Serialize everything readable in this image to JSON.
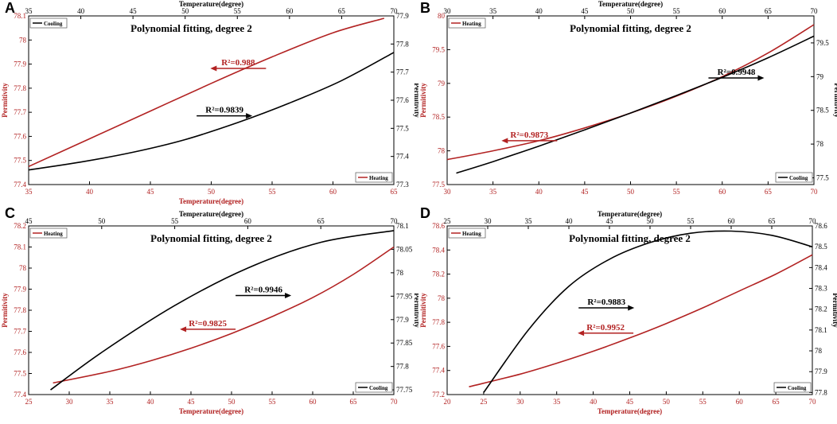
{
  "chart_data": [
    {
      "letter": "A",
      "type": "line",
      "title": "Polynomial fitting, degree 2",
      "bottom_axis": {
        "label": "Temperature(degree)",
        "color": "#b22222",
        "range": [
          35,
          65
        ],
        "ticks": [
          35,
          40,
          45,
          50,
          55,
          60,
          65
        ]
      },
      "top_axis": {
        "label": "Temperature(degree)",
        "color": "#000000",
        "range": [
          35,
          70
        ],
        "ticks": [
          35,
          40,
          45,
          50,
          55,
          60,
          65,
          70
        ]
      },
      "left_axis": {
        "label": "Permitivity",
        "color": "#b22222",
        "range": [
          77.4,
          78.1
        ],
        "ticks": [
          "77.4",
          "77.5",
          "77.6",
          "77.7",
          "77.8",
          "77.9",
          "78",
          "78.1"
        ]
      },
      "right_axis": {
        "label": "Permitivity",
        "color": "#000000",
        "range": [
          77.3,
          77.9
        ],
        "ticks": [
          "77.3",
          "77.4",
          "77.5",
          "77.6",
          "77.7",
          "77.8",
          "77.9"
        ]
      },
      "legends": [
        {
          "name": "Cooling",
          "color": "#000000",
          "position": "top-left"
        },
        {
          "name": "Heating",
          "color": "#b22222",
          "position": "bottom-right"
        }
      ],
      "series": [
        {
          "name": "Heating",
          "color": "#b22222",
          "x_axis": "bottom",
          "y_axis": "left",
          "x": [
            35,
            40,
            45,
            50,
            55,
            60,
            64.2
          ],
          "y": [
            77.475,
            77.59,
            77.705,
            77.82,
            77.93,
            78.03,
            78.09
          ]
        },
        {
          "name": "Cooling",
          "color": "#000000",
          "x_axis": "top",
          "y_axis": "right",
          "x": [
            35,
            40,
            45,
            50,
            55,
            60,
            65,
            70
          ],
          "y": [
            77.352,
            77.38,
            77.415,
            77.46,
            77.52,
            77.59,
            77.67,
            77.77
          ]
        }
      ],
      "annotations": [
        {
          "text": "R²=0.988",
          "color": "#b22222",
          "dir": "left",
          "x": 54.5,
          "y": 77.882,
          "axes": "left"
        },
        {
          "text": "R²=0.9839",
          "color": "#000000",
          "dir": "right",
          "x": 48.8,
          "y": 77.685,
          "axes": "left"
        }
      ]
    },
    {
      "letter": "B",
      "type": "line",
      "title": "Polynomial fitting, degree 2",
      "bottom_axis": {
        "label": "",
        "color": "#b22222",
        "range": [
          30,
          70
        ],
        "ticks": [
          30,
          35,
          40,
          45,
          50,
          55,
          60,
          65,
          70
        ]
      },
      "top_axis": {
        "label": "Temperature(degree)",
        "color": "#000000",
        "range": [
          30,
          70
        ],
        "ticks": [
          30,
          35,
          40,
          45,
          50,
          55,
          60,
          65,
          70
        ]
      },
      "left_axis": {
        "label": "Permitivity",
        "color": "#b22222",
        "range": [
          77.5,
          80
        ],
        "ticks": [
          "77.5",
          "78",
          "78.5",
          "79",
          "79.5",
          "80"
        ]
      },
      "right_axis": {
        "label": "Permitivity",
        "color": "#000000",
        "range": [
          77.4,
          79.9
        ],
        "ticks": [
          "77.5",
          "78",
          "78.5",
          "79",
          "79.5"
        ]
      },
      "legends": [
        {
          "name": "Heating",
          "color": "#b22222",
          "position": "top-left"
        },
        {
          "name": "Cooling",
          "color": "#000000",
          "position": "bottom-right"
        }
      ],
      "series": [
        {
          "name": "Heating",
          "color": "#b22222",
          "x_axis": "bottom",
          "y_axis": "left",
          "x": [
            30,
            35,
            40,
            45,
            50,
            55,
            60,
            65,
            70
          ],
          "y": [
            77.87,
            78.0,
            78.15,
            78.34,
            78.56,
            78.81,
            79.1,
            79.45,
            79.87
          ]
        },
        {
          "name": "Cooling",
          "color": "#000000",
          "x_axis": "top",
          "y_axis": "right",
          "x": [
            31,
            35,
            40,
            45,
            50,
            55,
            60,
            65,
            70
          ],
          "y": [
            77.57,
            77.74,
            77.97,
            78.21,
            78.46,
            78.72,
            78.99,
            79.28,
            79.6
          ]
        }
      ],
      "annotations": [
        {
          "text": "R²=0.9873",
          "color": "#b22222",
          "dir": "left",
          "x": 42,
          "y": 78.15,
          "axes": "left"
        },
        {
          "text": "R²=0.9948",
          "color": "#000000",
          "dir": "right",
          "x": 58.5,
          "y": 79.08,
          "axes": "left"
        }
      ]
    },
    {
      "letter": "C",
      "type": "line",
      "title": "Polynomial fitting, degree 2",
      "bottom_axis": {
        "label": "Temperature(degree)",
        "color": "#b22222",
        "range": [
          25,
          70
        ],
        "ticks": [
          25,
          30,
          35,
          40,
          45,
          50,
          55,
          60,
          65,
          70
        ]
      },
      "top_axis": {
        "label": "Temperature(degree)",
        "color": "#000000",
        "range": [
          45,
          70
        ],
        "ticks": [
          45,
          50,
          55,
          60,
          65,
          70
        ]
      },
      "left_axis": {
        "label": "Permitivity",
        "color": "#b22222",
        "range": [
          77.4,
          78.2
        ],
        "ticks": [
          "77.4",
          "77.5",
          "77.6",
          "77.7",
          "77.8",
          "77.9",
          "78",
          "78.1",
          "78.2"
        ]
      },
      "right_axis": {
        "label": "Permitivity",
        "color": "#000000",
        "range": [
          77.74,
          78.1
        ],
        "ticks": [
          "77.75",
          "77.8",
          "77.85",
          "77.9",
          "77.95",
          "78",
          "78.05",
          "78.1"
        ]
      },
      "legends": [
        {
          "name": "Heating",
          "color": "#b22222",
          "position": "top-left"
        },
        {
          "name": "Cooling",
          "color": "#000000",
          "position": "bottom-right"
        }
      ],
      "series": [
        {
          "name": "Heating",
          "color": "#b22222",
          "x_axis": "bottom",
          "y_axis": "left",
          "x": [
            28,
            35,
            40,
            45,
            50,
            55,
            60,
            65,
            70
          ],
          "y": [
            77.455,
            77.51,
            77.56,
            77.62,
            77.69,
            77.77,
            77.86,
            77.97,
            78.1
          ]
        },
        {
          "name": "Cooling",
          "color": "#000000",
          "x_axis": "top",
          "y_axis": "right",
          "x": [
            46.5,
            50,
            55,
            60,
            65,
            70
          ],
          "y": [
            77.75,
            77.83,
            77.93,
            78.01,
            78.065,
            78.09
          ]
        }
      ],
      "annotations": [
        {
          "text": "R²=0.9825",
          "color": "#b22222",
          "dir": "left",
          "x": 50.5,
          "y": 77.71,
          "axes": "left"
        },
        {
          "text": "R²=0.9946",
          "color": "#000000",
          "dir": "right",
          "x": 50.5,
          "y": 77.87,
          "axes": "left"
        }
      ]
    },
    {
      "letter": "D",
      "type": "line",
      "title": "Polynomial fitting, degree 2",
      "bottom_axis": {
        "label": "Temperature(degree)",
        "color": "#b22222",
        "range": [
          20,
          70
        ],
        "ticks": [
          20,
          25,
          30,
          35,
          40,
          45,
          50,
          55,
          60,
          65,
          70
        ]
      },
      "top_axis": {
        "label": "Temperature(degree)",
        "color": "#000000",
        "range": [
          25,
          70
        ],
        "ticks": [
          25,
          30,
          35,
          40,
          45,
          50,
          55,
          60,
          65,
          70
        ]
      },
      "left_axis": {
        "label": "Permitivity",
        "color": "#b22222",
        "range": [
          77.2,
          78.6
        ],
        "ticks": [
          "77.2",
          "77.4",
          "77.6",
          "77.8",
          "78",
          "78.2",
          "78.4",
          "78.6"
        ]
      },
      "right_axis": {
        "label": "Permitivity",
        "color": "#000000",
        "range": [
          77.79,
          78.6
        ],
        "ticks": [
          "77.8",
          "77.9",
          "78",
          "78.1",
          "78.2",
          "78.3",
          "78.4",
          "78.5",
          "78.6"
        ]
      },
      "legends": [
        {
          "name": "Heating",
          "color": "#b22222",
          "position": "top-left"
        },
        {
          "name": "Cooling",
          "color": "#000000",
          "position": "bottom-right"
        }
      ],
      "series": [
        {
          "name": "Heating",
          "color": "#b22222",
          "x_axis": "bottom",
          "y_axis": "left",
          "x": [
            23,
            30,
            35,
            40,
            45,
            50,
            55,
            60,
            65,
            70
          ],
          "y": [
            77.265,
            77.37,
            77.46,
            77.56,
            77.67,
            77.79,
            77.92,
            78.06,
            78.2,
            78.36
          ]
        },
        {
          "name": "Cooling",
          "color": "#000000",
          "x_axis": "top",
          "y_axis": "right",
          "x": [
            29.5,
            35,
            40,
            45,
            50,
            55,
            60,
            65,
            70
          ],
          "y": [
            77.8,
            78.1,
            78.31,
            78.44,
            78.52,
            78.565,
            78.575,
            78.555,
            78.5
          ]
        }
      ],
      "annotations": [
        {
          "text": "R²=0.9952",
          "color": "#b22222",
          "dir": "left",
          "x": 45.5,
          "y": 77.71,
          "axes": "left"
        },
        {
          "text": "R²=0.9883",
          "color": "#000000",
          "dir": "right",
          "x": 38,
          "y": 77.92,
          "axes": "left"
        }
      ]
    }
  ]
}
